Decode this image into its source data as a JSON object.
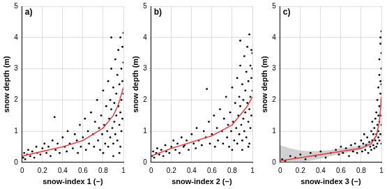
{
  "chart_data": [
    {
      "type": "scatter",
      "title": "a)",
      "x_label": "snow-index 1 (−)",
      "y_label": "snow depth (m)",
      "xlim": [
        0,
        1
      ],
      "ylim": [
        0,
        5
      ],
      "xticks": [
        0,
        0.2,
        0.4,
        0.6,
        0.8,
        1
      ],
      "yticks": [
        0,
        1,
        2,
        3,
        4,
        5
      ],
      "grid": true,
      "series": [
        {
          "type": "scatter",
          "color": "#000000",
          "marker": "circle",
          "x": [
            0.01,
            0.02,
            0.03,
            0.05,
            0.06,
            0.08,
            0.1,
            0.12,
            0.14,
            0.15,
            0.18,
            0.2,
            0.22,
            0.24,
            0.26,
            0.28,
            0.3,
            0.32,
            0.33,
            0.35,
            0.37,
            0.4,
            0.42,
            0.44,
            0.45,
            0.47,
            0.5,
            0.52,
            0.54,
            0.55,
            0.57,
            0.58,
            0.6,
            0.62,
            0.63,
            0.65,
            0.66,
            0.68,
            0.7,
            0.71,
            0.72,
            0.74,
            0.75,
            0.76,
            0.77,
            0.78,
            0.79,
            0.8,
            0.81,
            0.82,
            0.83,
            0.84,
            0.85,
            0.85,
            0.86,
            0.87,
            0.87,
            0.88,
            0.88,
            0.89,
            0.9,
            0.9,
            0.91,
            0.91,
            0.92,
            0.92,
            0.93,
            0.93,
            0.94,
            0.94,
            0.95,
            0.95,
            0.96,
            0.96,
            0.97,
            0.97,
            0.97,
            0.98,
            0.98,
            0.98,
            0.99,
            0.99,
            0.99,
            1.0,
            1.0,
            1.0,
            0.96,
            0.9,
            0.88,
            0.8
          ],
          "values": [
            0.15,
            0.3,
            0.1,
            0.25,
            0.4,
            0.2,
            0.35,
            0.15,
            0.5,
            0.3,
            0.25,
            0.45,
            0.6,
            0.3,
            0.5,
            0.2,
            0.7,
            1.45,
            0.4,
            0.6,
            0.3,
            0.8,
            0.5,
            0.35,
            1.0,
            0.6,
            0.45,
            0.9,
            0.7,
            0.3,
            1.2,
            0.5,
            0.8,
            1.4,
            0.4,
            1.0,
            0.6,
            1.6,
            0.9,
            0.5,
            1.3,
            2.0,
            0.7,
            1.1,
            0.4,
            1.5,
            0.9,
            2.3,
            1.2,
            0.6,
            1.8,
            1.0,
            2.6,
            0.5,
            1.4,
            2.0,
            0.8,
            1.7,
            3.0,
            1.1,
            2.4,
            0.6,
            1.9,
            1.3,
            3.3,
            0.9,
            2.2,
            1.5,
            2.8,
            0.7,
            1.8,
            3.6,
            1.2,
            2.5,
            4.0,
            1.6,
            0.5,
            3.0,
            2.0,
            1.0,
            3.7,
            2.6,
            1.4,
            4.15,
            3.2,
            2.2,
            0.3,
            0.2,
            4.0,
            0.3
          ]
        },
        {
          "type": "line",
          "color": "#e0474c",
          "line_style": "solid",
          "x": [
            0,
            0.2,
            0.4,
            0.6,
            0.8,
            0.9,
            0.95,
            1.0
          ],
          "values": [
            0.2,
            0.35,
            0.5,
            0.7,
            1.1,
            1.5,
            1.85,
            2.4
          ]
        }
      ]
    },
    {
      "type": "scatter",
      "title": "b)",
      "x_label": "snow-index 2 (−)",
      "y_label": "snow depth (m)",
      "xlim": [
        0,
        1
      ],
      "ylim": [
        0,
        5
      ],
      "xticks": [
        0,
        0.2,
        0.4,
        0.6,
        0.8,
        1
      ],
      "yticks": [
        0,
        1,
        2,
        3,
        4,
        5
      ],
      "grid": true,
      "series": [
        {
          "type": "scatter",
          "color": "#000000",
          "marker": "circle",
          "x": [
            0.01,
            0.02,
            0.03,
            0.05,
            0.06,
            0.08,
            0.1,
            0.12,
            0.14,
            0.15,
            0.18,
            0.2,
            0.22,
            0.24,
            0.26,
            0.28,
            0.3,
            0.32,
            0.33,
            0.35,
            0.37,
            0.4,
            0.42,
            0.44,
            0.45,
            0.47,
            0.5,
            0.52,
            0.54,
            0.55,
            0.57,
            0.58,
            0.6,
            0.62,
            0.63,
            0.65,
            0.66,
            0.68,
            0.7,
            0.71,
            0.72,
            0.74,
            0.75,
            0.76,
            0.77,
            0.78,
            0.79,
            0.8,
            0.81,
            0.82,
            0.83,
            0.84,
            0.85,
            0.85,
            0.86,
            0.87,
            0.87,
            0.88,
            0.88,
            0.89,
            0.9,
            0.9,
            0.91,
            0.91,
            0.92,
            0.92,
            0.93,
            0.93,
            0.94,
            0.94,
            0.95,
            0.95,
            0.96,
            0.96,
            0.97,
            0.97,
            0.97,
            0.98,
            0.98,
            0.98,
            0.99,
            0.99,
            0.99,
            1.0,
            1.0,
            1.0,
            0.96,
            0.9,
            0.88,
            0.8
          ],
          "values": [
            0.2,
            0.35,
            0.15,
            0.3,
            0.45,
            0.25,
            0.4,
            0.2,
            0.55,
            0.35,
            0.3,
            0.5,
            0.7,
            0.4,
            0.6,
            0.3,
            0.8,
            0.5,
            0.55,
            0.7,
            0.4,
            0.9,
            0.6,
            0.45,
            1.1,
            0.7,
            0.55,
            1.0,
            0.8,
            2.35,
            1.3,
            0.6,
            0.9,
            1.5,
            0.5,
            1.1,
            0.7,
            1.7,
            1.0,
            0.6,
            1.4,
            2.1,
            0.8,
            1.2,
            0.5,
            1.6,
            1.0,
            2.4,
            1.3,
            0.7,
            1.9,
            1.1,
            2.7,
            0.6,
            1.5,
            2.1,
            0.9,
            1.8,
            3.1,
            1.2,
            2.5,
            0.7,
            2.0,
            1.4,
            3.4,
            1.0,
            2.3,
            1.6,
            2.9,
            0.8,
            1.9,
            3.7,
            1.3,
            2.6,
            4.1,
            1.7,
            0.6,
            3.1,
            2.1,
            1.1,
            3.6,
            2.7,
            1.5,
            3.5,
            3.0,
            2.3,
            0.5,
            0.4,
            3.9,
            0.4
          ]
        },
        {
          "type": "line",
          "color": "#e0474c",
          "line_style": "solid",
          "x": [
            0,
            0.2,
            0.4,
            0.6,
            0.8,
            0.9,
            0.95,
            1.0
          ],
          "values": [
            0.2,
            0.45,
            0.65,
            0.85,
            1.2,
            1.6,
            1.8,
            2.1
          ]
        }
      ]
    },
    {
      "type": "scatter",
      "title": "c)",
      "x_label": "snow-index 3 (−)",
      "y_label": "snow depth (m)",
      "xlim": [
        0,
        1
      ],
      "ylim": [
        0,
        5
      ],
      "xticks": [
        0,
        0.2,
        0.4,
        0.6,
        0.8,
        1
      ],
      "yticks": [
        0,
        1,
        2,
        3,
        4,
        5
      ],
      "grid": true,
      "series": [
        {
          "type": "band",
          "color": "#bdbdbd",
          "x": [
            0,
            0.1,
            0.2,
            0.3,
            0.4,
            0.5,
            0.6,
            0.7,
            0.8,
            0.9,
            0.95,
            0.98,
            1.0
          ],
          "lower": [
            0,
            0,
            0,
            0.05,
            0.12,
            0.2,
            0.27,
            0.33,
            0.4,
            0.55,
            0.78,
            1.2,
            1.9
          ],
          "upper": [
            0.55,
            0.45,
            0.38,
            0.36,
            0.37,
            0.4,
            0.45,
            0.5,
            0.55,
            0.68,
            0.92,
            1.4,
            2.3
          ]
        },
        {
          "type": "scatter",
          "color": "#000000",
          "marker": "circle",
          "x": [
            0.02,
            0.05,
            0.1,
            0.15,
            0.2,
            0.25,
            0.3,
            0.35,
            0.4,
            0.45,
            0.5,
            0.55,
            0.58,
            0.6,
            0.62,
            0.65,
            0.68,
            0.7,
            0.72,
            0.74,
            0.76,
            0.78,
            0.8,
            0.81,
            0.82,
            0.83,
            0.84,
            0.85,
            0.86,
            0.87,
            0.88,
            0.89,
            0.9,
            0.9,
            0.91,
            0.91,
            0.92,
            0.92,
            0.93,
            0.93,
            0.94,
            0.94,
            0.95,
            0.95,
            0.95,
            0.96,
            0.96,
            0.96,
            0.97,
            0.97,
            0.97,
            0.97,
            0.98,
            0.98,
            0.98,
            0.98,
            0.98,
            0.99,
            0.99,
            0.99,
            0.99,
            0.99,
            0.99,
            1.0,
            1.0,
            1.0,
            1.0,
            1.0,
            1.0,
            1.0
          ],
          "values": [
            0.1,
            0.05,
            0.2,
            0.15,
            0.25,
            0.1,
            0.3,
            0.2,
            0.35,
            0.15,
            0.3,
            0.4,
            0.25,
            0.5,
            0.3,
            0.45,
            0.2,
            0.55,
            0.35,
            0.6,
            0.3,
            0.5,
            0.7,
            0.35,
            0.6,
            0.9,
            0.4,
            0.55,
            0.8,
            0.3,
            0.65,
            0.5,
            1.0,
            0.4,
            0.7,
            1.3,
            0.55,
            0.9,
            0.45,
            1.1,
            0.7,
            1.4,
            0.5,
            0.9,
            1.6,
            0.6,
            1.2,
            2.0,
            0.8,
            1.5,
            2.4,
            1.0,
            1.8,
            2.8,
            0.7,
            1.3,
            3.3,
            2.2,
            3.8,
            1.5,
            0.9,
            2.6,
            4.0,
            3.0,
            4.2,
            2.0,
            1.2,
            3.5,
            0.6,
            2.5
          ]
        },
        {
          "type": "line",
          "color": "#e0474c",
          "line_style": "solid",
          "x": [
            0,
            0.2,
            0.4,
            0.6,
            0.8,
            0.9,
            0.95,
            0.98,
            1.0
          ],
          "values": [
            0.05,
            0.15,
            0.25,
            0.35,
            0.45,
            0.6,
            0.85,
            1.3,
            2.1
          ]
        }
      ]
    }
  ]
}
